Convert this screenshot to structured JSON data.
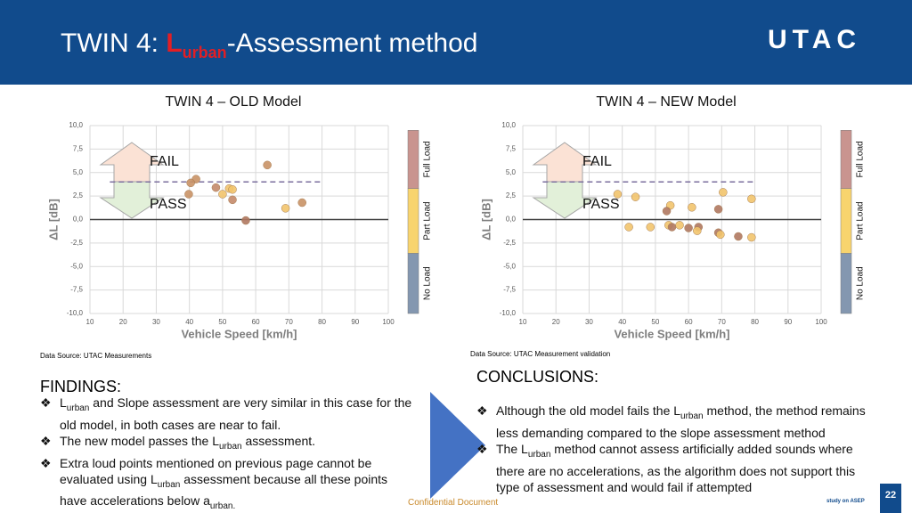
{
  "header": {
    "title_prefix": "TWIN 4: ",
    "title_symbol": "L",
    "title_sub": "urban",
    "title_suffix": "-Assessment method",
    "logo": "UTAC"
  },
  "chart_data": [
    {
      "type": "scatter",
      "title": "TWIN 4 – OLD Model",
      "xlabel": "Vehicle Speed [km/h]",
      "ylabel": "ΔL [dB]",
      "xlim": [
        10,
        100
      ],
      "xticks": [
        10,
        20,
        30,
        40,
        50,
        60,
        70,
        80,
        90,
        100
      ],
      "ylim": [
        -10,
        10
      ],
      "yticks": [
        {
          "value": 10,
          "label": "10,0"
        },
        {
          "value": 7.5,
          "label": "7,5"
        },
        {
          "value": 5,
          "label": "5,0"
        },
        {
          "value": 2.5,
          "label": "2,5"
        },
        {
          "value": 0,
          "label": "0,0"
        },
        {
          "value": -2.5,
          "label": "-2,5"
        },
        {
          "value": -5,
          "label": "-5,0"
        },
        {
          "value": -7.5,
          "label": "-7,5"
        },
        {
          "value": -10,
          "label": "-10,0"
        }
      ],
      "grid": true,
      "x": [
        63.5,
        42,
        40.4,
        48,
        52,
        53,
        50,
        39.8,
        53,
        74,
        69,
        57
      ],
      "y": [
        5.8,
        4.3,
        3.9,
        3.4,
        3.3,
        3.2,
        2.7,
        2.7,
        2.1,
        1.8,
        1.2,
        -0.1
      ],
      "colors": [
        "#c99266",
        "#c99266",
        "#c99266",
        "#c48a6a",
        "#f2c46d",
        "#f2c46d",
        "#f2c46d",
        "#c99266",
        "#c48a6a",
        "#c99266",
        "#f2c46d",
        "#b07860"
      ],
      "threshold": 4,
      "threshold_x": [
        16,
        80
      ],
      "fail_label": "FAIL",
      "pass_label": "PASS",
      "load_bands": [
        {
          "label": "Full Load",
          "range": [
            3.3,
            9.5
          ],
          "color": "#c9948f"
        },
        {
          "label": "Part Load",
          "range": [
            -3.6,
            3.3
          ],
          "color": "#f8d46e"
        },
        {
          "label": "No Load",
          "range": [
            -10,
            -3.6
          ],
          "color": "#8497b0"
        }
      ],
      "source": "Data Source: UTAC Measurements"
    },
    {
      "type": "scatter",
      "title": "TWIN 4 – NEW Model",
      "xlabel": "Vehicle Speed [km/h]",
      "ylabel": "ΔL [dB]",
      "xlim": [
        10,
        100
      ],
      "xticks": [
        10,
        20,
        30,
        40,
        50,
        60,
        70,
        80,
        90,
        100
      ],
      "ylim": [
        -10,
        10
      ],
      "yticks": [
        {
          "value": 10,
          "label": "10,0"
        },
        {
          "value": 7.5,
          "label": "7,5"
        },
        {
          "value": 5,
          "label": "5,0"
        },
        {
          "value": 2.5,
          "label": "2,5"
        },
        {
          "value": 0,
          "label": "0,0"
        },
        {
          "value": -2.5,
          "label": "-2,5"
        },
        {
          "value": -5,
          "label": "-5,0"
        },
        {
          "value": -7.5,
          "label": "-7,5"
        },
        {
          "value": -10,
          "label": "-10,0"
        }
      ],
      "grid": true,
      "x": [
        38.6,
        44,
        70.4,
        79,
        54.5,
        53.4,
        69,
        61,
        42,
        48.5,
        54,
        55,
        57.3,
        60,
        63,
        62.6,
        69,
        69.6,
        75,
        79
      ],
      "y": [
        2.7,
        2.4,
        2.9,
        2.2,
        1.5,
        0.9,
        1.1,
        1.3,
        -0.8,
        -0.8,
        -0.6,
        -0.8,
        -0.6,
        -0.9,
        -0.8,
        -1.2,
        -1.4,
        -1.6,
        -1.8,
        -1.9
      ],
      "colors": [
        "#f2c46d",
        "#f2c46d",
        "#f2c46d",
        "#f2c46d",
        "#f2c46d",
        "#b07860",
        "#b07860",
        "#f2c46d",
        "#f2c46d",
        "#f2c46d",
        "#f2c46d",
        "#b07860",
        "#f2c46d",
        "#b07860",
        "#b07860",
        "#f2c46d",
        "#b07860",
        "#f2c46d",
        "#b07860",
        "#f2c46d"
      ],
      "threshold": 4,
      "threshold_x": [
        16,
        80
      ],
      "fail_label": "FAIL",
      "pass_label": "PASS",
      "load_bands": [
        {
          "label": "Full Load",
          "range": [
            3.3,
            9.5
          ],
          "color": "#c9948f"
        },
        {
          "label": "Part Load",
          "range": [
            -3.6,
            3.3
          ],
          "color": "#f8d46e"
        },
        {
          "label": "No Load",
          "range": [
            -10,
            -3.6
          ],
          "color": "#8497b0"
        }
      ],
      "source": "Data Source: UTAC Measurement validation"
    }
  ],
  "findings": {
    "heading": "FINDINGS:",
    "bullets": [
      [
        {
          "text": "L"
        },
        {
          "sub": "urban"
        },
        {
          "text": " and Slope assessment are very similar in this case for the old model, in both cases are near to fail."
        }
      ],
      [
        {
          "text": "The new model passes the L"
        },
        {
          "sub": "urban"
        },
        {
          "text": " assessment."
        }
      ],
      [
        {
          "text": "Extra loud points mentioned on previous page cannot be evaluated using L"
        },
        {
          "sub": "urban"
        },
        {
          "text": " assessment because all these points have accelerations below a"
        },
        {
          "sub": "urban."
        }
      ]
    ]
  },
  "conclusions": {
    "heading": "CONCLUSIONS:",
    "bullets": [
      [
        {
          "text": "Although the old model fails the L"
        },
        {
          "sub": "urban"
        },
        {
          "text": " method, the method remains less demanding compared to the slope assessment method"
        }
      ],
      [
        {
          "text": "The L"
        },
        {
          "sub": "urban"
        },
        {
          "text": " method cannot assess artificially added sounds where there are no accelerations, as the algorithm does not support this type of assessment and would fail if attempted"
        }
      ]
    ]
  },
  "footer": {
    "confidential": "Confidential Document",
    "study": "study on ASEP",
    "page": "22"
  }
}
